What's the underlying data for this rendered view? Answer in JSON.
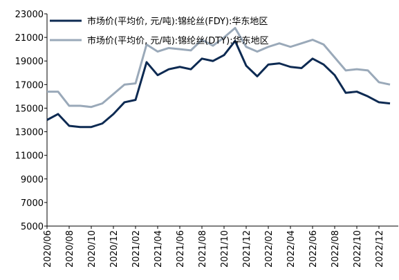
{
  "chart_data": {
    "type": "line",
    "categories": [
      "2020/06",
      null,
      "2020/08",
      null,
      "2020/10",
      null,
      "2020/12",
      null,
      "2021/02",
      null,
      "2021/04",
      null,
      "2021/06",
      null,
      "2021/08",
      null,
      "2021/10",
      null,
      "2021/12",
      null,
      "2022/02",
      null,
      "2022/04",
      null,
      "2022/06",
      null,
      "2022/08",
      null,
      "2022/10",
      null,
      "2022/12",
      null
    ],
    "series": [
      {
        "name": "市场价(平均价, 元/吨):锦纶丝(FDY):华东地区",
        "color": "#0d2a52",
        "values": [
          14000,
          14500,
          13500,
          13400,
          13400,
          13700,
          14500,
          15500,
          15700,
          18900,
          17800,
          18300,
          18500,
          18300,
          19200,
          19000,
          19500,
          20700,
          18600,
          17700,
          18700,
          18800,
          18500,
          18400,
          19200,
          18700,
          17800,
          16300,
          16400,
          16000,
          15500,
          15400
        ]
      },
      {
        "name": "市场价(平均价, 元/吨):锦纶丝(DTY):华东地区",
        "color": "#9aa9b9",
        "values": [
          16400,
          16400,
          15200,
          15200,
          15100,
          15400,
          16200,
          17000,
          17100,
          20400,
          19800,
          20100,
          20000,
          19900,
          20800,
          20300,
          21000,
          21800,
          20200,
          19800,
          20200,
          20500,
          20200,
          20500,
          20800,
          20400,
          19300,
          18200,
          18300,
          18200,
          17200,
          17000
        ]
      }
    ],
    "ylim": [
      5000,
      23000
    ],
    "yticks": [
      5000,
      7000,
      9000,
      11000,
      13000,
      15000,
      17000,
      19000,
      21000,
      23000
    ],
    "legend": "upper left"
  }
}
